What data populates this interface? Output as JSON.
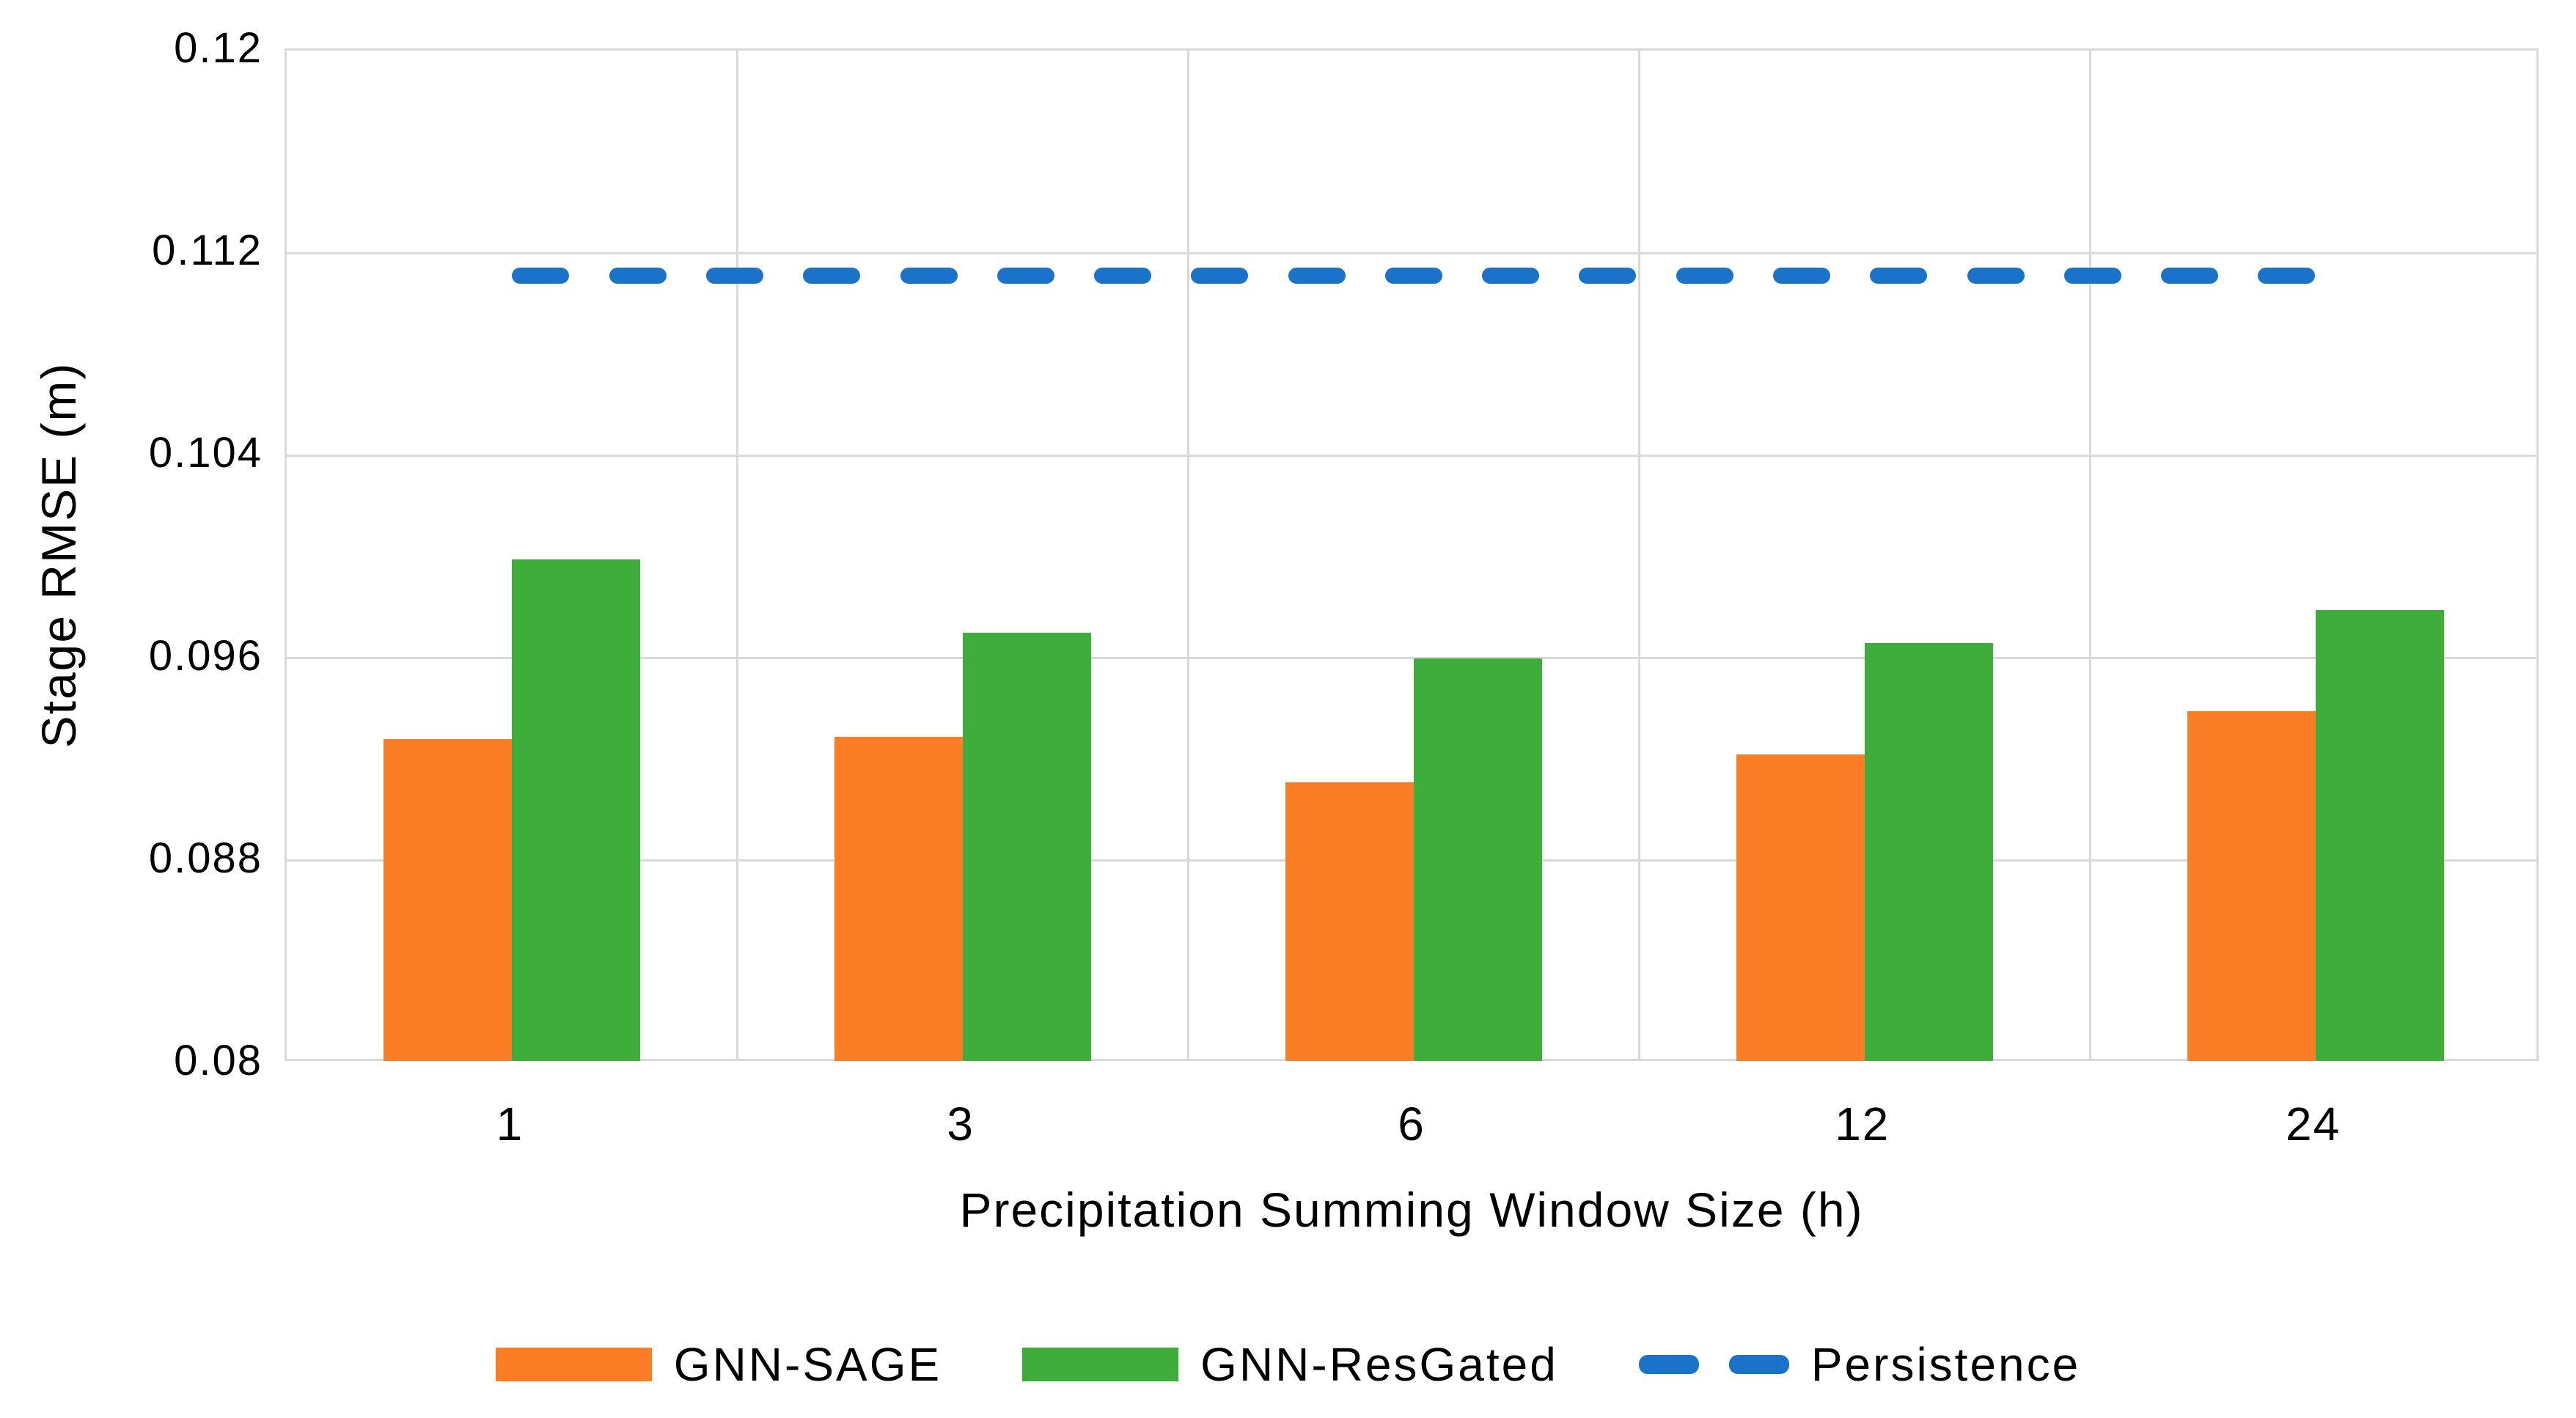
{
  "chart_data": {
    "type": "bar",
    "title": "",
    "xlabel": "Precipitation Summing Window Size (h)",
    "ylabel": "Stage RMSE (m)",
    "categories": [
      "1",
      "3",
      "6",
      "12",
      "24"
    ],
    "series": [
      {
        "name": "GNN-SAGE",
        "type": "bar",
        "color": "#FB7D26",
        "values": [
          0.0928,
          0.0929,
          0.0911,
          0.0922,
          0.0939
        ]
      },
      {
        "name": "GNN-ResGated",
        "type": "bar",
        "color": "#3FAD3C",
        "values": [
          0.0999,
          0.097,
          0.096,
          0.0966,
          0.0979
        ]
      },
      {
        "name": "Persistence",
        "type": "dashed-line",
        "color": "#1A73C8",
        "value": 0.1111
      }
    ],
    "ylim": [
      0.08,
      0.12
    ],
    "yticks": [
      0.08,
      0.088,
      0.096,
      0.104,
      0.112,
      0.12
    ],
    "ytick_labels": [
      "0.08",
      "0.088",
      "0.096",
      "0.104",
      "0.112",
      "0.12"
    ],
    "grid": true,
    "grid_color": "#D9D9D9",
    "legend_position": "bottom"
  }
}
